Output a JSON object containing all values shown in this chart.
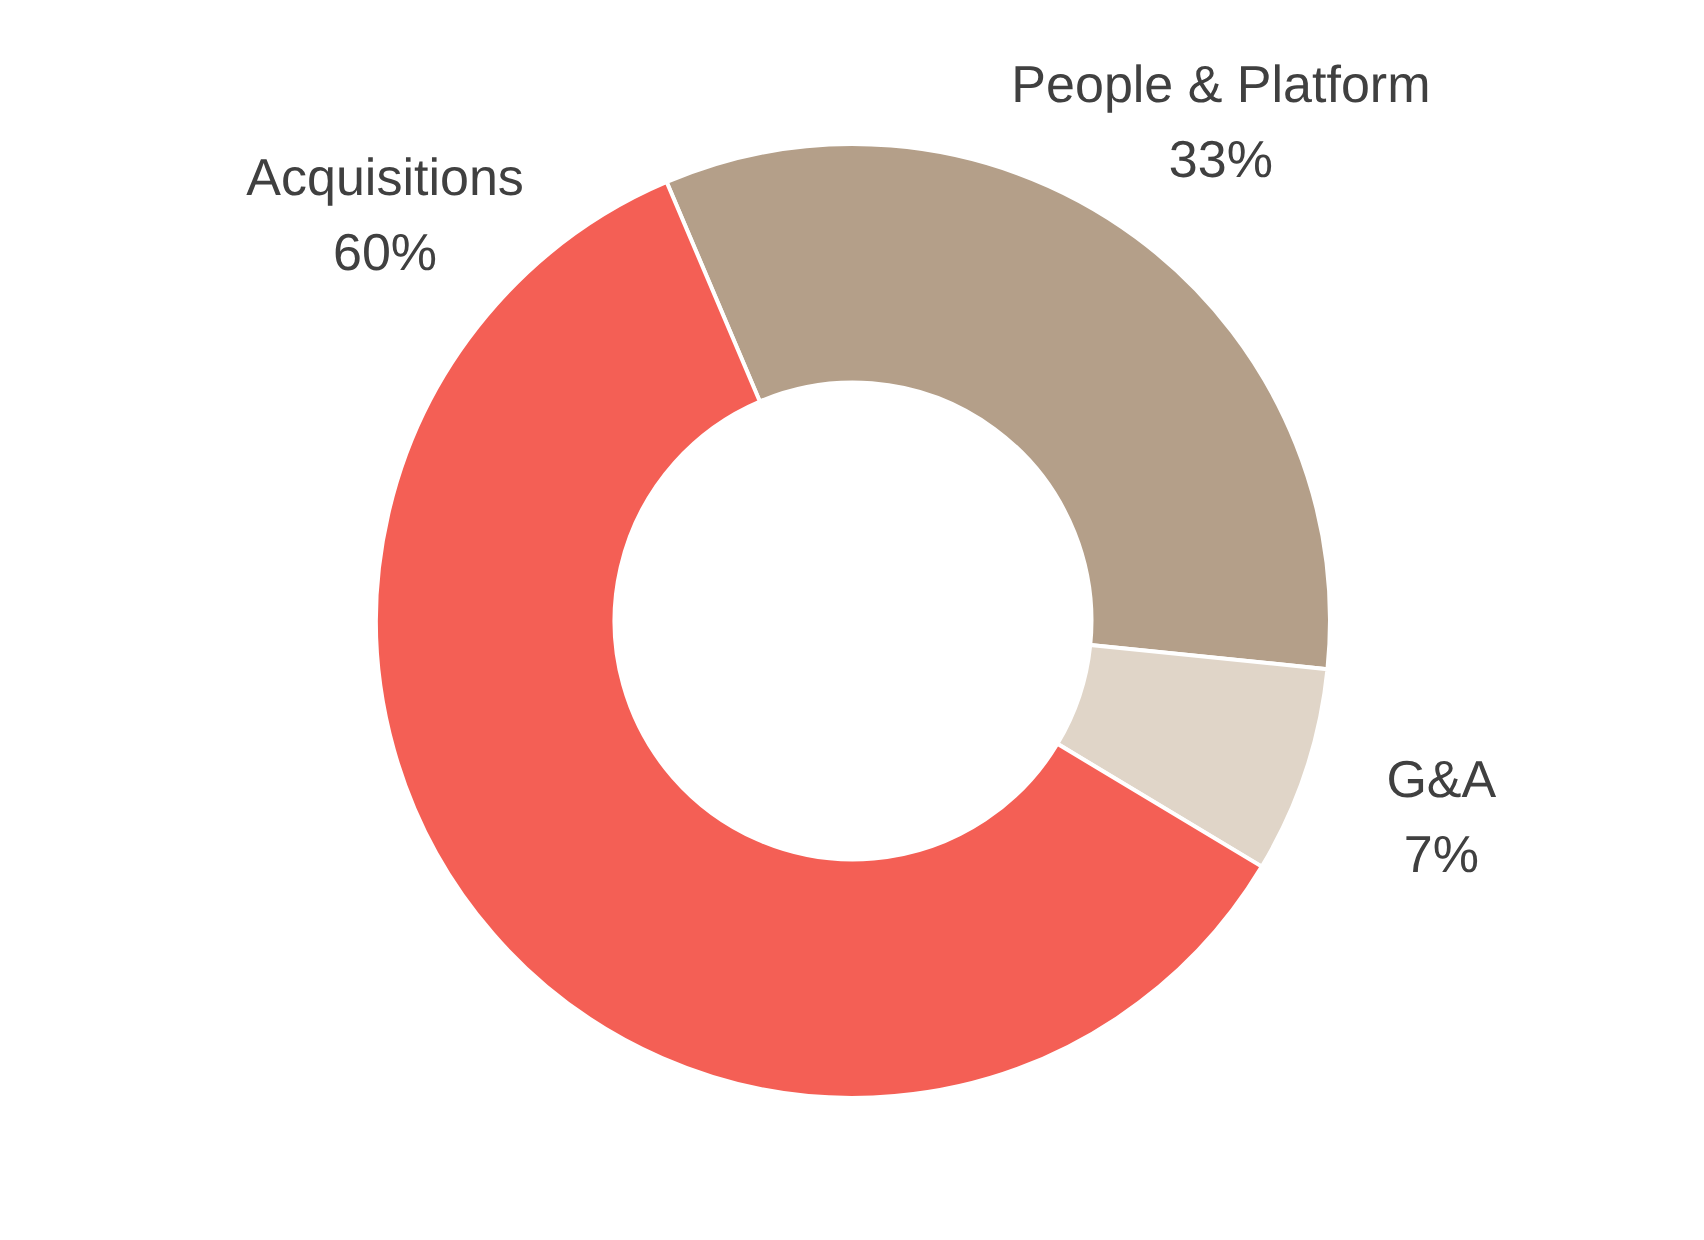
{
  "chart_data": {
    "type": "donut",
    "categories": [
      "People & Platform",
      "G&A",
      "Acquisitions"
    ],
    "values": [
      33,
      7,
      60
    ],
    "colors": [
      "#b49f89",
      "#e0d5c8",
      "#f45f55"
    ],
    "value_labels": [
      "33%",
      "7%",
      "60%"
    ]
  }
}
